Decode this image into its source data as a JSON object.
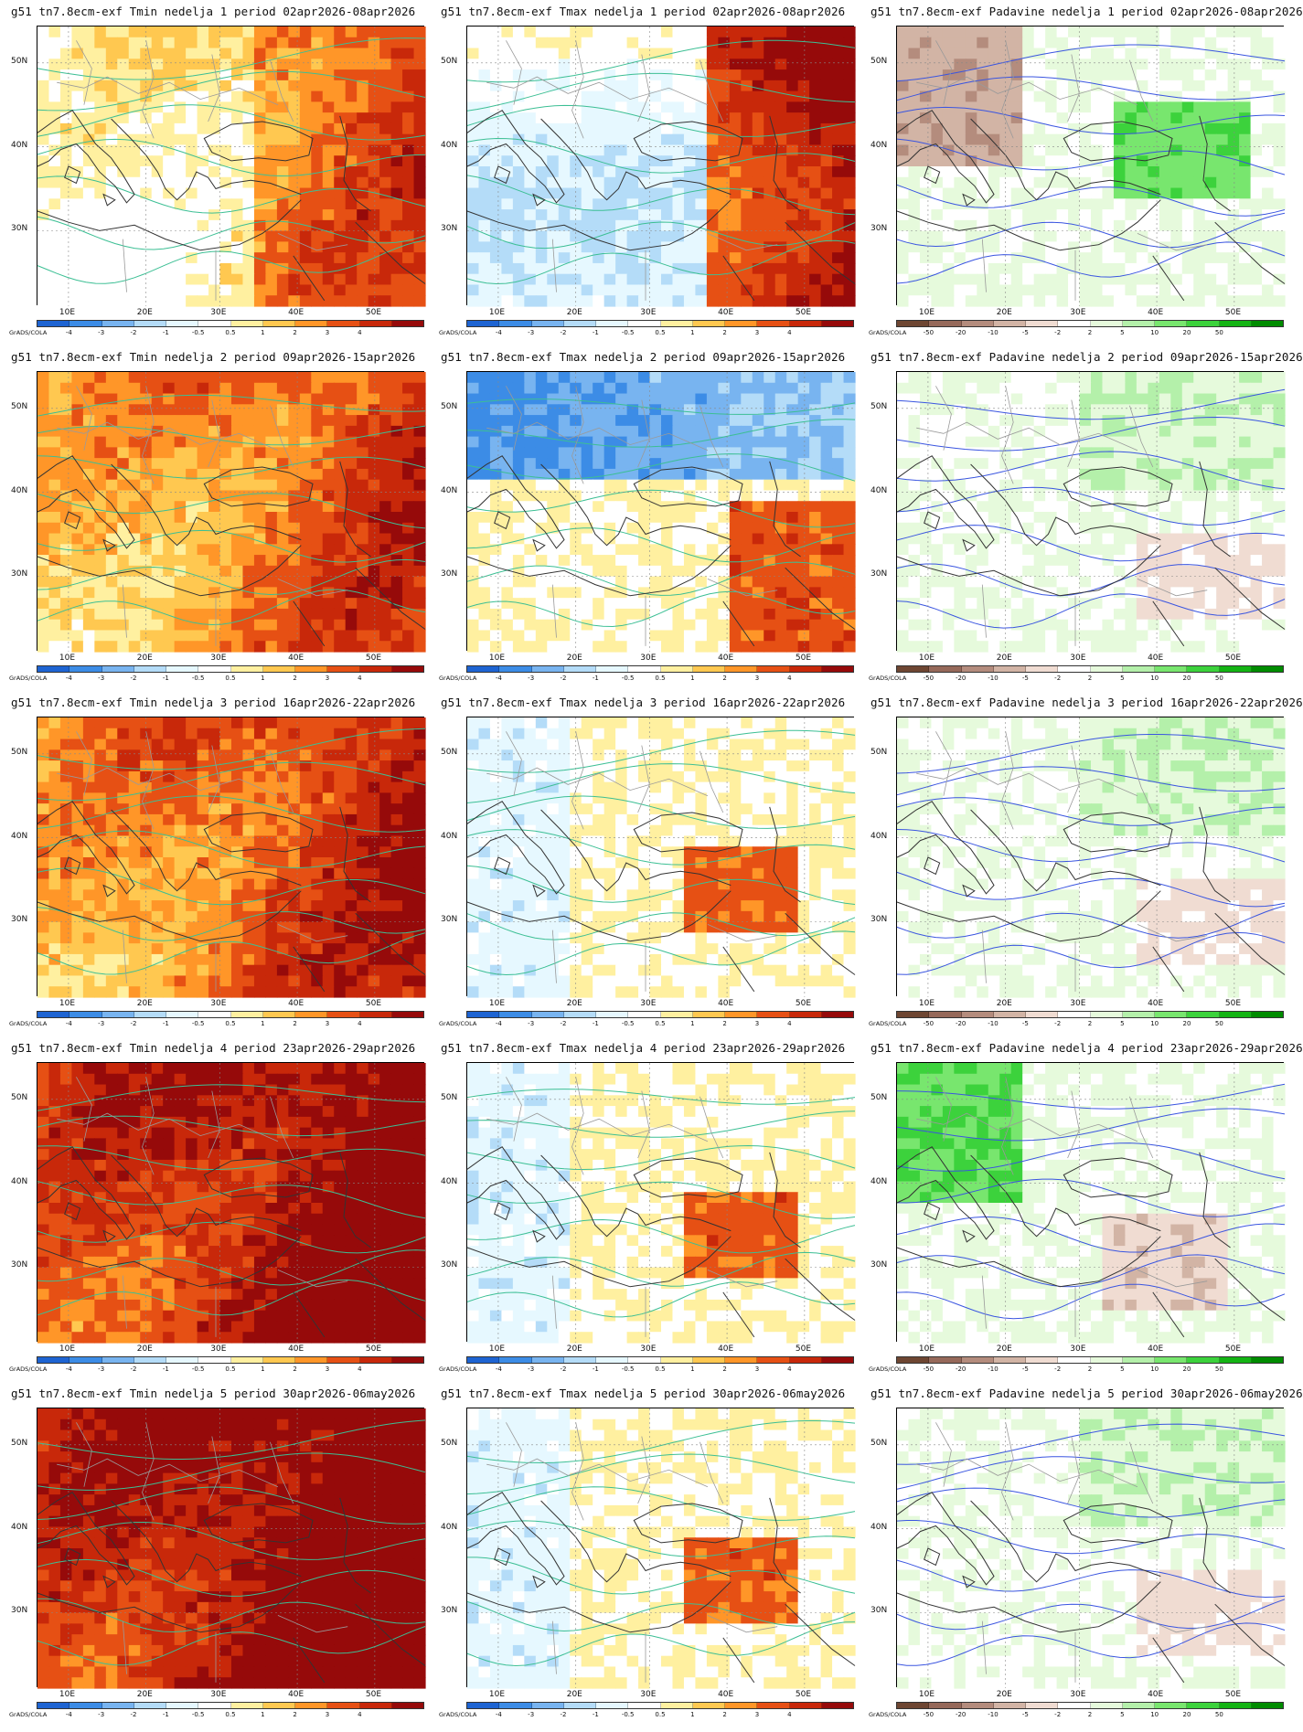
{
  "credit": "GrADS/COLA",
  "lat_labels": [
    "50N",
    "40N",
    "30N"
  ],
  "lon_labels": [
    "10E",
    "20E",
    "30E",
    "40E",
    "50E"
  ],
  "temp_scale": {
    "labels": [
      "-4",
      "-3",
      "-2",
      "-1",
      "-0.5",
      "0.5",
      "1",
      "2",
      "3",
      "4"
    ],
    "colors": [
      "#1e64d2",
      "#3c8ce6",
      "#78b4f0",
      "#b4dcf8",
      "#e6f8ff",
      "#ffffff",
      "#fff0a0",
      "#ffc850",
      "#ff9628",
      "#e65014",
      "#c8280a",
      "#960a0a"
    ]
  },
  "precip_scale": {
    "labels": [
      "-50",
      "-20",
      "-10",
      "-5",
      "-2",
      "2",
      "5",
      "10",
      "20",
      "50"
    ],
    "colors": [
      "#6e4632",
      "#96695a",
      "#b48c7d",
      "#d2b4a5",
      "#f0dcd2",
      "#ffffff",
      "#e6fadc",
      "#b4f0aa",
      "#78e66e",
      "#3cd23c",
      "#14b414",
      "#008c00"
    ]
  },
  "panels": [
    {
      "title": "g51  tn7.8ecm-exf  Tmin  nedelja 1  period 02apr2026-08apr2026",
      "var": "tmin"
    },
    {
      "title": "g51  tn7.8ecm-exf  Tmax  nedelja 1  period 02apr2026-08apr2026",
      "var": "tmax"
    },
    {
      "title": "g51  tn7.8ecm-exf  Padavine  nedelja 1  period 02apr2026-08apr2026",
      "var": "precip"
    },
    {
      "title": "g51  tn7.8ecm-exf  Tmin  nedelja 2  period 09apr2026-15apr2026",
      "var": "tmin"
    },
    {
      "title": "g51  tn7.8ecm-exf  Tmax  nedelja 2  period 09apr2026-15apr2026",
      "var": "tmax"
    },
    {
      "title": "g51  tn7.8ecm-exf  Padavine  nedelja 2  period 09apr2026-15apr2026",
      "var": "precip"
    },
    {
      "title": "g51  tn7.8ecm-exf  Tmin  nedelja 3  period 16apr2026-22apr2026",
      "var": "tmin"
    },
    {
      "title": "g51  tn7.8ecm-exf  Tmax  nedelja 3  period 16apr2026-22apr2026",
      "var": "tmax"
    },
    {
      "title": "g51  tn7.8ecm-exf  Padavine  nedelja 3  period 16apr2026-22apr2026",
      "var": "precip"
    },
    {
      "title": "g51  tn7.8ecm-exf  Tmin  nedelja 4  period 23apr2026-29apr2026",
      "var": "tmin"
    },
    {
      "title": "g51  tn7.8ecm-exf  Tmax  nedelja 4  period 23apr2026-29apr2026",
      "var": "tmax"
    },
    {
      "title": "g51  tn7.8ecm-exf  Padavine  nedelja 4  period 23apr2026-29apr2026",
      "var": "precip"
    },
    {
      "title": "g51  tn7.8ecm-exf  Tmin  nedelja 5  period 30apr2026-06may2026",
      "var": "tmin"
    },
    {
      "title": "g51  tn7.8ecm-exf  Tmax  nedelja 5  period 30apr2026-06may2026",
      "var": "tmax"
    },
    {
      "title": "g51  tn7.8ecm-exf  Padavine  nedelja 5  period 30apr2026-06may2026",
      "var": "precip"
    }
  ]
}
